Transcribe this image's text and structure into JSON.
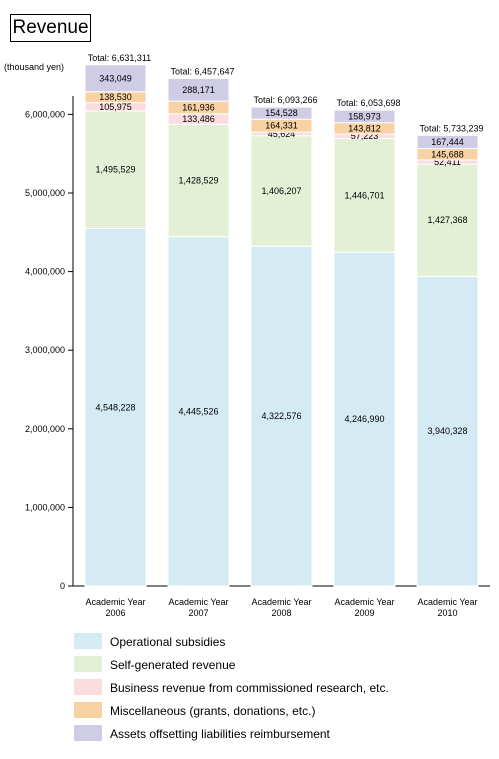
{
  "title": "Revenue",
  "unit_label": "(thousand yen)",
  "chart_data": {
    "type": "bar",
    "stacked": true,
    "title": "Revenue",
    "ylabel": "(thousand yen)",
    "ylim": [
      0,
      7000000
    ],
    "yticks": [
      0,
      1000000,
      2000000,
      3000000,
      4000000,
      5000000,
      6000000
    ],
    "ytick_labels": [
      "0",
      "1,000,000",
      "2,000,000",
      "3,000,000",
      "4,000,000",
      "5,000,000",
      "6,000,000"
    ],
    "categories": [
      [
        "Academic Year",
        "2006"
      ],
      [
        "Academic Year",
        "2007"
      ],
      [
        "Academic Year",
        "2008"
      ],
      [
        "Academic Year",
        "2009"
      ],
      [
        "Academic Year",
        "2010"
      ]
    ],
    "series": [
      {
        "name": "Operational subsidies",
        "color": "#d4ebf3",
        "values": [
          4548228,
          4445526,
          4322576,
          4246990,
          3940328
        ],
        "labels": [
          "4,548,228",
          "4,445,526",
          "4,322,576",
          "4,246,990",
          "3,940,328"
        ]
      },
      {
        "name": "Self-generated revenue",
        "color": "#e3f0d5",
        "values": [
          1495529,
          1428529,
          1406207,
          1446701,
          1427368
        ],
        "labels": [
          "1,495,529",
          "1,428,529",
          "1,406,207",
          "1,446,701",
          "1,427,368"
        ]
      },
      {
        "name": "Business revenue from commissioned research, etc.",
        "color": "#fbdde0",
        "values": [
          105975,
          133486,
          45624,
          57223,
          52411
        ],
        "labels": [
          "105,975",
          "133,486",
          "45,624",
          "57,223",
          "52,411"
        ]
      },
      {
        "name": "Miscellaneous (grants, donations, etc.)",
        "color": "#f9d2a4",
        "values": [
          138530,
          161936,
          164331,
          143812,
          145688
        ],
        "labels": [
          "138,530",
          "161,936",
          "164,331",
          "143,812",
          "145,688"
        ]
      },
      {
        "name": "Assets offsetting liabilities reimbursement",
        "color": "#cfcce6",
        "values": [
          343049,
          288171,
          154528,
          158973,
          167444
        ],
        "labels": [
          "343,049",
          "288,171",
          "154,528",
          "158,973",
          "167,444"
        ]
      }
    ],
    "totals": [
      "Total: 6,631,311",
      "Total: 6,457,647",
      "Total: 6,093,266",
      "Total: 6,053,698",
      "Total: 5,733,239"
    ],
    "grid": false,
    "legend_position": "bottom"
  }
}
